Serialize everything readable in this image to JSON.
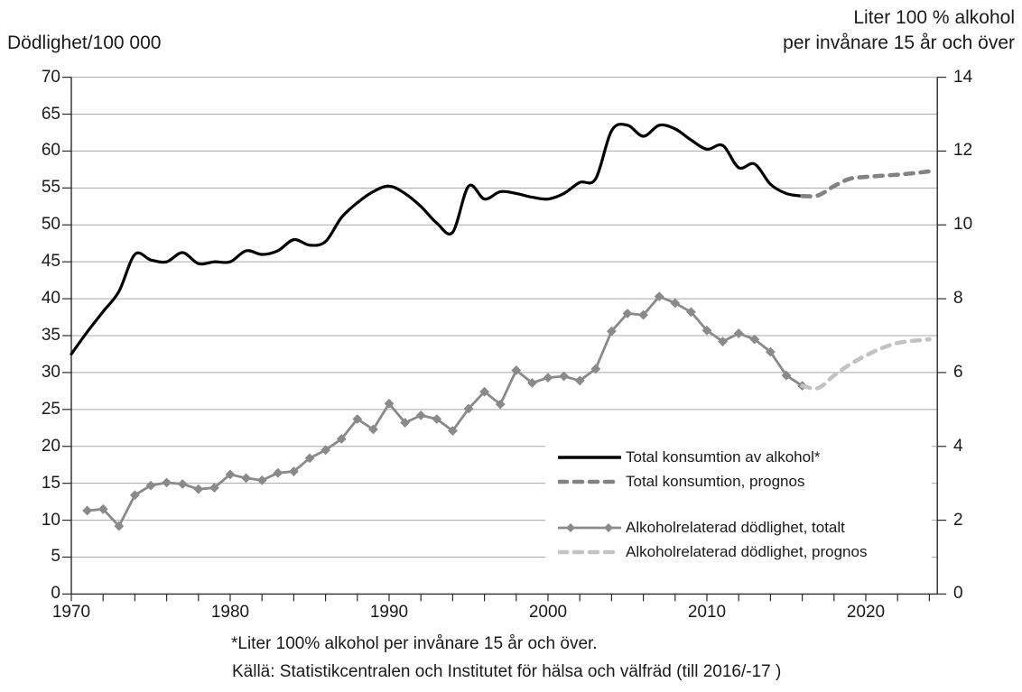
{
  "titles": {
    "left_axis_title": "Dödlighet/100 000",
    "right_axis_title_line1": "Liter 100 % alkohol",
    "right_axis_title_line2": "per invånare 15 år och över"
  },
  "footnotes": {
    "line1": "*Liter 100% alkohol per invånare 15 år och över.",
    "line2": "Källä: Statistikcentralen och Institutet för hälsa och välfräd (till 2016/-17 )"
  },
  "legend": {
    "items": [
      {
        "label": "Total konsumtion av alkohol*",
        "style": "solid",
        "color": "#000000"
      },
      {
        "label": "Total konsumtion, prognos",
        "style": "dashed",
        "color": "#828282"
      },
      {
        "label": "Alkoholrelaterad dödlighet, totalt",
        "style": "solid-diamond",
        "color": "#8a8a8a"
      },
      {
        "label": "Alkoholrelaterad dödlighet, prognos",
        "style": "dashed",
        "color": "#c3c3c3"
      }
    ]
  },
  "chart_data": {
    "type": "line",
    "title": "",
    "grid": true,
    "legend_position": "inside-right",
    "x_axis": {
      "min": 1970,
      "max": 2024.5,
      "major_tick_years": [
        1970,
        1980,
        1990,
        2000,
        2010,
        2020
      ],
      "major_tick_labels": [
        "1970",
        "1980",
        "1990",
        "2000",
        "2010",
        "2020"
      ],
      "minor_tick_step": 2
    },
    "y_left_axis": {
      "title": "Dödlighet/100 000",
      "min": 0,
      "max": 70,
      "tick_step": 5,
      "tick_labels": [
        "0",
        "5",
        "10",
        "15",
        "20",
        "25",
        "30",
        "35",
        "40",
        "45",
        "50",
        "55",
        "60",
        "65",
        "70"
      ]
    },
    "y_right_axis": {
      "title": "Liter 100 % alkohol per invånare 15 år och över",
      "min": 0,
      "max": 14,
      "tick_step": 2,
      "tick_labels": [
        "0",
        "2",
        "4",
        "6",
        "8",
        "10",
        "12",
        "14"
      ]
    },
    "series": [
      {
        "id": "konsumtion-total",
        "name": "Total konsumtion av alkohol*",
        "axis": "right",
        "style": "solid",
        "smooth": true,
        "marker": "none",
        "color": "#000000",
        "width": 3.2,
        "years": [
          1970,
          1971,
          1972,
          1973,
          1974,
          1975,
          1976,
          1977,
          1978,
          1979,
          1980,
          1981,
          1982,
          1983,
          1984,
          1985,
          1986,
          1987,
          1988,
          1989,
          1990,
          1991,
          1992,
          1993,
          1994,
          1995,
          1996,
          1997,
          1998,
          1999,
          2000,
          2001,
          2002,
          2003,
          2004,
          2005,
          2006,
          2007,
          2008,
          2009,
          2010,
          2011,
          2012,
          2013,
          2014,
          2015,
          2016
        ],
        "values": [
          6.5,
          7.1,
          7.65,
          8.2,
          9.2,
          9.05,
          9.0,
          9.25,
          8.95,
          9.0,
          9.0,
          9.3,
          9.2,
          9.3,
          9.6,
          9.45,
          9.55,
          10.2,
          10.6,
          10.9,
          11.05,
          10.85,
          10.5,
          10.05,
          9.8,
          11.05,
          10.7,
          10.9,
          10.85,
          10.75,
          10.7,
          10.85,
          11.15,
          11.25,
          12.55,
          12.7,
          12.4,
          12.7,
          12.6,
          12.3,
          12.05,
          12.15,
          11.55,
          11.65,
          11.1,
          10.85,
          10.78
        ]
      },
      {
        "id": "konsumtion-prognos",
        "name": "Total konsumtion, prognos",
        "axis": "right",
        "style": "dashed",
        "smooth": true,
        "marker": "none",
        "color": "#828282",
        "width": 4.6,
        "years": [
          2016,
          2017,
          2018,
          2019,
          2020,
          2021,
          2022,
          2023,
          2024
        ],
        "values": [
          10.78,
          10.8,
          11.05,
          11.25,
          11.3,
          11.33,
          11.36,
          11.4,
          11.45
        ]
      },
      {
        "id": "dodlighet-total",
        "name": "Alkoholrelaterad dödlighet, totalt",
        "axis": "left",
        "style": "solid",
        "smooth": false,
        "marker": "diamond",
        "color": "#8a8a8a",
        "width": 2.8,
        "years": [
          1971,
          1972,
          1973,
          1974,
          1975,
          1976,
          1977,
          1978,
          1979,
          1980,
          1981,
          1982,
          1983,
          1984,
          1985,
          1986,
          1987,
          1988,
          1989,
          1990,
          1991,
          1992,
          1993,
          1994,
          1995,
          1996,
          1997,
          1998,
          1999,
          2000,
          2001,
          2002,
          2003,
          2004,
          2005,
          2006,
          2007,
          2008,
          2009,
          2010,
          2011,
          2012,
          2013,
          2014,
          2015,
          2016
        ],
        "values": [
          11.3,
          11.5,
          9.2,
          13.4,
          14.7,
          15.1,
          14.9,
          14.2,
          14.4,
          16.2,
          15.7,
          15.4,
          16.4,
          16.6,
          18.4,
          19.5,
          21.0,
          23.7,
          22.3,
          25.8,
          23.2,
          24.2,
          23.7,
          22.1,
          25.1,
          27.4,
          25.7,
          30.3,
          28.6,
          29.3,
          29.5,
          28.9,
          30.5,
          35.6,
          38.0,
          37.8,
          40.3,
          39.4,
          38.2,
          35.7,
          34.2,
          35.3,
          34.5,
          32.8,
          29.6,
          28.2
        ]
      },
      {
        "id": "dodlighet-prognos",
        "name": "Alkoholrelaterad dödlighet, prognos",
        "axis": "left",
        "style": "dashed",
        "smooth": true,
        "marker": "none",
        "color": "#c3c3c3",
        "width": 4.6,
        "years": [
          2016,
          2017,
          2018,
          2019,
          2020,
          2021,
          2022,
          2023,
          2024
        ],
        "values": [
          28.2,
          27.9,
          29.6,
          31.1,
          32.3,
          33.3,
          34.0,
          34.3,
          34.5
        ]
      }
    ]
  }
}
